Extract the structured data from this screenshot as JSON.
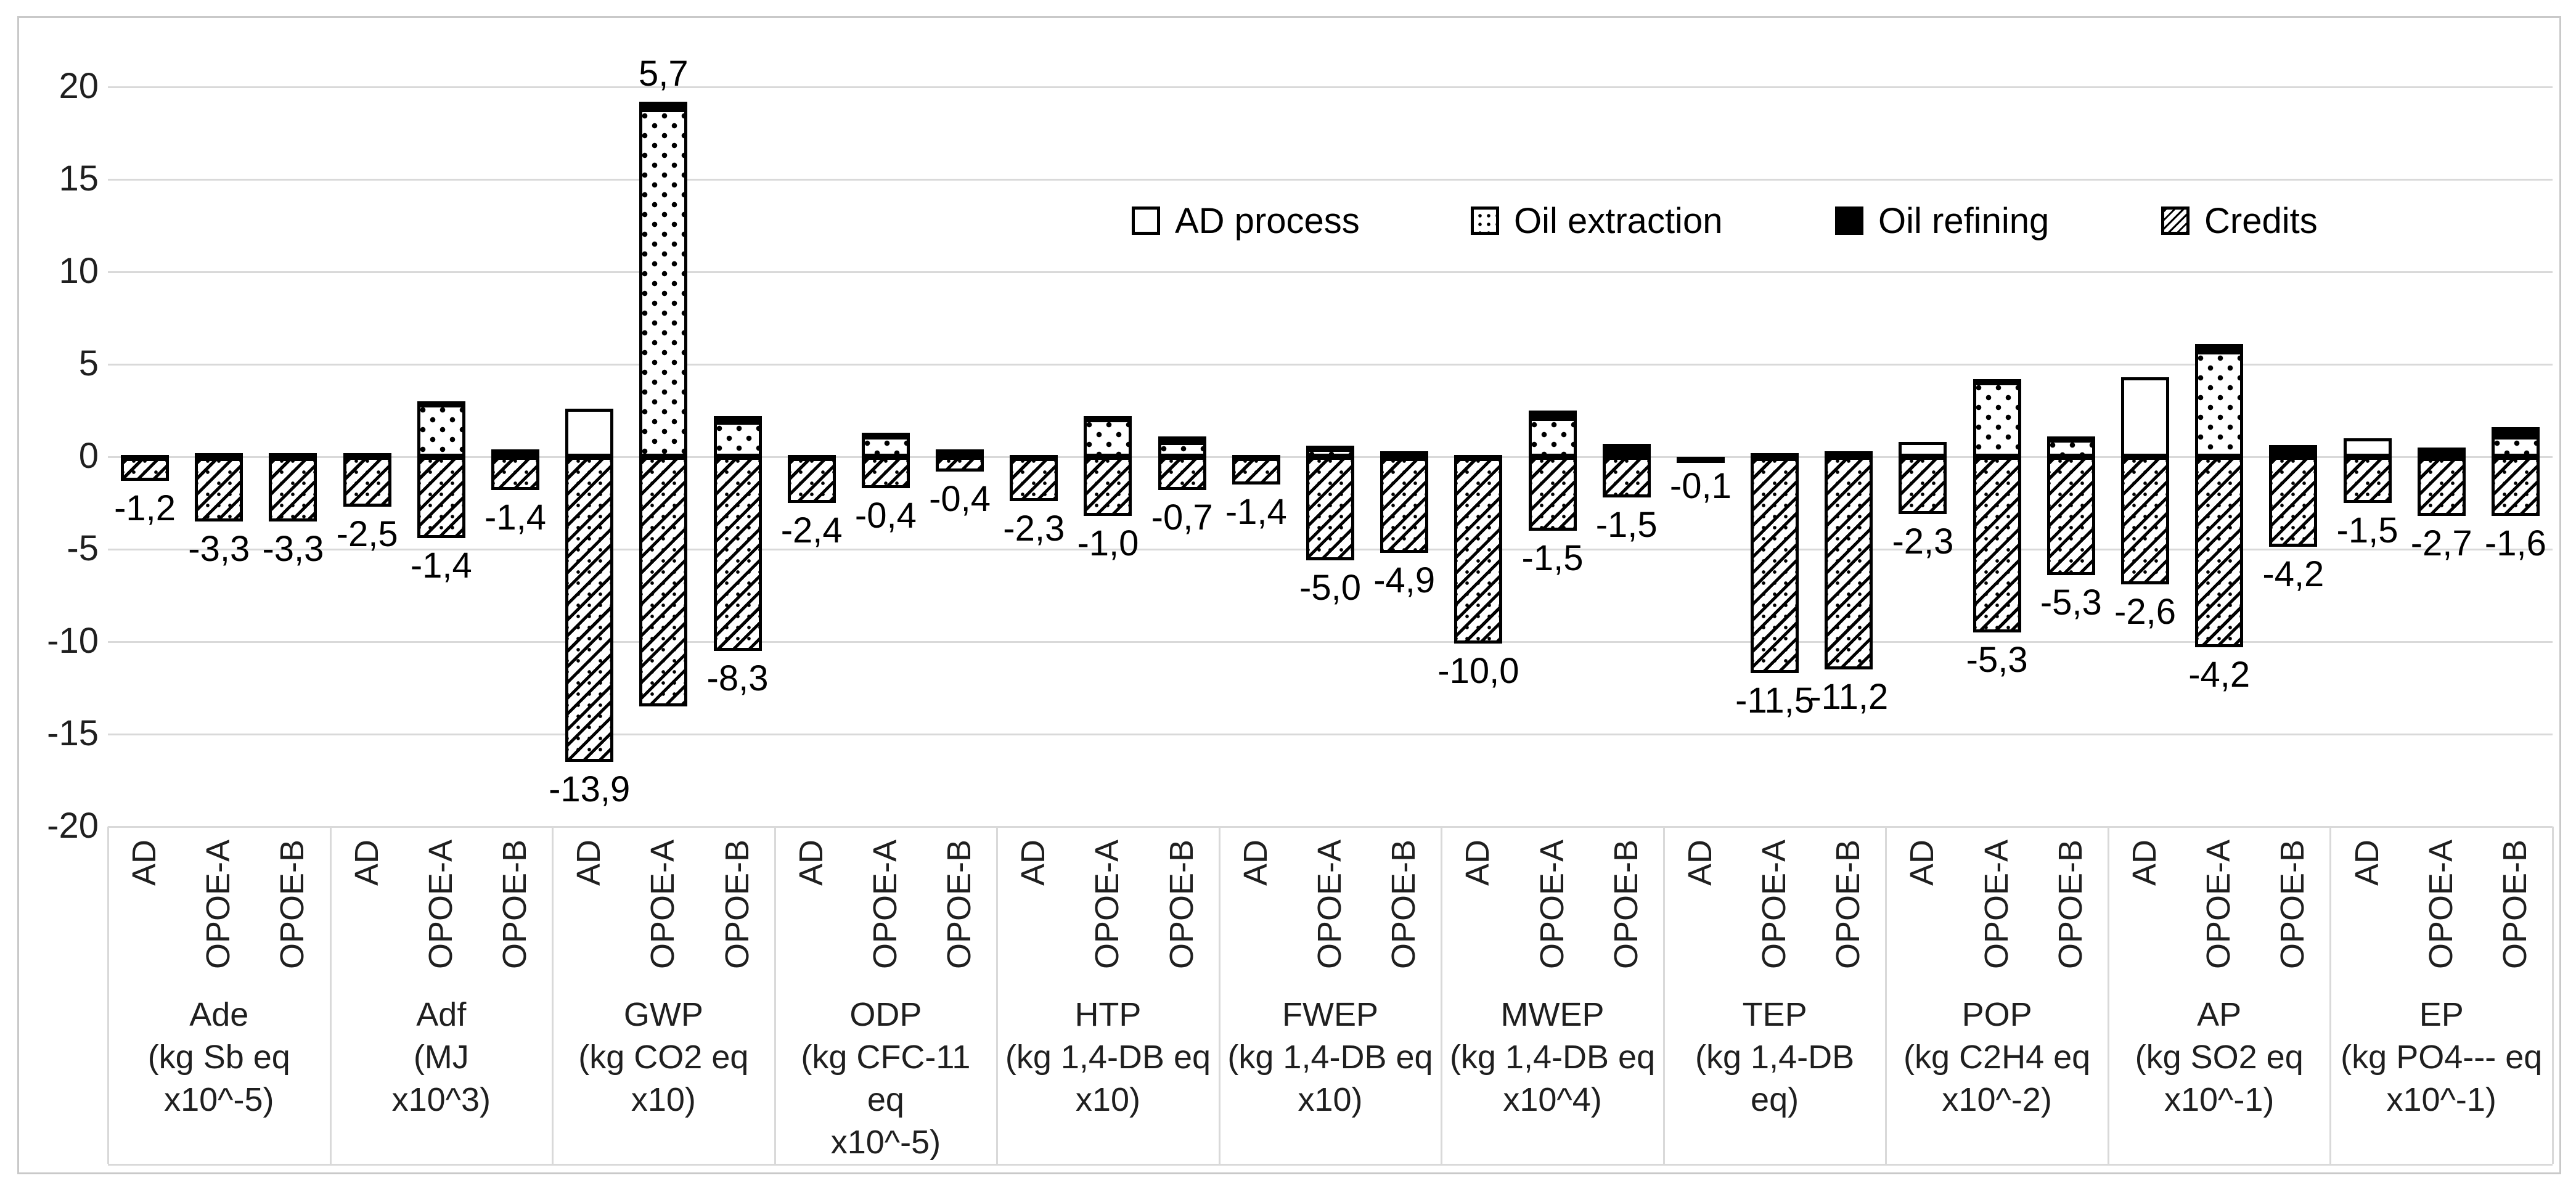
{
  "chart_data": {
    "type": "bar",
    "variant": "stacked-with-negative-credits",
    "title": "",
    "xlabel": "",
    "ylabel": "",
    "ylim": [
      -20,
      20
    ],
    "yticks": [
      20,
      15,
      10,
      5,
      0,
      -5,
      -10,
      -15,
      -20
    ],
    "grid": true,
    "legend_position": "top-center",
    "decimal_separator": ",",
    "legend": [
      {
        "id": "ad_process",
        "label": "AD process",
        "pattern": "white",
        "swatch_class": "sw-white"
      },
      {
        "id": "oil_extraction",
        "label": "Oil extraction",
        "pattern": "dots",
        "swatch_class": "sw-dots"
      },
      {
        "id": "oil_refining",
        "label": "Oil refining",
        "pattern": "black",
        "swatch_class": "sw-black"
      },
      {
        "id": "credits",
        "label": "Credits",
        "pattern": "diagonal-hatch",
        "swatch_class": "sw-hatch"
      }
    ],
    "scenarios": [
      "AD",
      "OPOE-A",
      "OPOE-B"
    ],
    "groups": [
      {
        "name": "Ade",
        "unit_lines": [
          "(kg Sb eq",
          "x10^-5)"
        ],
        "bars": [
          {
            "scenario": "AD",
            "segments": {
              "ad_process": 0.1,
              "oil_extraction": 0,
              "oil_refining": 0,
              "credits": -1.3
            },
            "total": -1.2,
            "total_label": "-1,2"
          },
          {
            "scenario": "OPOE-A",
            "segments": {
              "ad_process": 0,
              "oil_extraction": 0.1,
              "oil_refining": 0.1,
              "credits": -3.5
            },
            "total": -3.3,
            "total_label": "-3,3"
          },
          {
            "scenario": "OPOE-B",
            "segments": {
              "ad_process": 0,
              "oil_extraction": 0.1,
              "oil_refining": 0.1,
              "credits": -3.5
            },
            "total": -3.3,
            "total_label": "-3,3"
          }
        ]
      },
      {
        "name": "Adf",
        "unit_lines": [
          "(MJ",
          "x10^3)"
        ],
        "bars": [
          {
            "scenario": "AD",
            "segments": {
              "ad_process": 0.2,
              "oil_extraction": 0,
              "oil_refining": 0,
              "credits": -2.7
            },
            "total": -2.5,
            "total_label": "-2,5"
          },
          {
            "scenario": "OPOE-A",
            "segments": {
              "ad_process": 0,
              "oil_extraction": 2.9,
              "oil_refining": 0.1,
              "credits": -4.4
            },
            "total": -1.4,
            "total_label": "-1,4"
          },
          {
            "scenario": "OPOE-B",
            "segments": {
              "ad_process": 0,
              "oil_extraction": 0.3,
              "oil_refining": 0.1,
              "credits": -1.8
            },
            "total": -1.4,
            "total_label": "-1,4"
          }
        ]
      },
      {
        "name": "GWP",
        "unit_lines": [
          "(kg CO2 eq",
          "x10)"
        ],
        "bars": [
          {
            "scenario": "AD",
            "segments": {
              "ad_process": 2.6,
              "oil_extraction": 0,
              "oil_refining": 0,
              "credits": -16.5
            },
            "total": -13.9,
            "total_label": "-13,9"
          },
          {
            "scenario": "OPOE-A",
            "segments": {
              "ad_process": 0,
              "oil_extraction": 18.8,
              "oil_refining": 0.4,
              "credits": -13.5
            },
            "total": 5.7,
            "total_label": "5,7"
          },
          {
            "scenario": "OPOE-B",
            "segments": {
              "ad_process": 0,
              "oil_extraction": 1.9,
              "oil_refining": 0.3,
              "credits": -10.5
            },
            "total": -8.3,
            "total_label": "-8,3"
          }
        ]
      },
      {
        "name": "ODP",
        "unit_lines": [
          "(kg CFC-11 eq",
          "x10^-5)"
        ],
        "bars": [
          {
            "scenario": "AD",
            "segments": {
              "ad_process": 0.1,
              "oil_extraction": 0,
              "oil_refining": 0,
              "credits": -2.5
            },
            "total": -2.4,
            "total_label": "-2,4"
          },
          {
            "scenario": "OPOE-A",
            "segments": {
              "ad_process": 0,
              "oil_extraction": 1.1,
              "oil_refining": 0.2,
              "credits": -1.7
            },
            "total": -0.4,
            "total_label": "-0,4"
          },
          {
            "scenario": "OPOE-B",
            "segments": {
              "ad_process": 0,
              "oil_extraction": 0.3,
              "oil_refining": 0.1,
              "credits": -0.8
            },
            "total": -0.4,
            "total_label": "-0,4"
          }
        ]
      },
      {
        "name": "HTP",
        "unit_lines": [
          "(kg 1,4-DB eq",
          "x10)"
        ],
        "bars": [
          {
            "scenario": "AD",
            "segments": {
              "ad_process": 0.1,
              "oil_extraction": 0,
              "oil_refining": 0,
              "credits": -2.4
            },
            "total": -2.3,
            "total_label": "-2,3"
          },
          {
            "scenario": "OPOE-A",
            "segments": {
              "ad_process": 0,
              "oil_extraction": 2.1,
              "oil_refining": 0.1,
              "credits": -3.2
            },
            "total": -1.0,
            "total_label": "-1,0"
          },
          {
            "scenario": "OPOE-B",
            "segments": {
              "ad_process": 0,
              "oil_extraction": 0.8,
              "oil_refining": 0.3,
              "credits": -1.8
            },
            "total": -0.7,
            "total_label": "-0,7"
          }
        ]
      },
      {
        "name": "FWEP",
        "unit_lines": [
          "(kg 1,4-DB eq",
          "x10)"
        ],
        "bars": [
          {
            "scenario": "AD",
            "segments": {
              "ad_process": 0.1,
              "oil_extraction": 0,
              "oil_refining": 0,
              "credits": -1.5
            },
            "total": -1.4,
            "total_label": "-1,4"
          },
          {
            "scenario": "OPOE-A",
            "segments": {
              "ad_process": 0,
              "oil_extraction": 0.5,
              "oil_refining": 0.1,
              "credits": -5.6
            },
            "total": -5.0,
            "total_label": "-5,0"
          },
          {
            "scenario": "OPOE-B",
            "segments": {
              "ad_process": 0,
              "oil_extraction": 0.1,
              "oil_refining": 0.2,
              "credits": -5.2
            },
            "total": -4.9,
            "total_label": "-4,9"
          }
        ]
      },
      {
        "name": "MWEP",
        "unit_lines": [
          "(kg 1,4-DB eq",
          "x10^4)"
        ],
        "bars": [
          {
            "scenario": "AD",
            "segments": {
              "ad_process": 0.1,
              "oil_extraction": 0,
              "oil_refining": 0,
              "credits": -10.1
            },
            "total": -10.0,
            "total_label": "-10,0"
          },
          {
            "scenario": "OPOE-A",
            "segments": {
              "ad_process": 0,
              "oil_extraction": 2.1,
              "oil_refining": 0.4,
              "credits": -4.0
            },
            "total": -1.5,
            "total_label": "-1,5"
          },
          {
            "scenario": "OPOE-B",
            "segments": {
              "ad_process": 0,
              "oil_extraction": 0.3,
              "oil_refining": 0.4,
              "credits": -2.2
            },
            "total": -1.5,
            "total_label": "-1,5"
          }
        ]
      },
      {
        "name": "TEP",
        "unit_lines": [
          "(kg 1,4-DB eq)"
        ],
        "bars": [
          {
            "scenario": "AD",
            "segments": {
              "ad_process": 0,
              "oil_extraction": 0,
              "oil_refining": 0,
              "credits": -0.1
            },
            "total": -0.1,
            "total_label": "-0,1"
          },
          {
            "scenario": "OPOE-A",
            "segments": {
              "ad_process": 0,
              "oil_extraction": 0.1,
              "oil_refining": 0.1,
              "credits": -11.7
            },
            "total": -11.5,
            "total_label": "-11,5"
          },
          {
            "scenario": "OPOE-B",
            "segments": {
              "ad_process": 0,
              "oil_extraction": 0.2,
              "oil_refining": 0.1,
              "credits": -11.5
            },
            "total": -11.2,
            "total_label": "-11,2"
          }
        ]
      },
      {
        "name": "POP",
        "unit_lines": [
          "(kg C2H4 eq",
          "x10^-2)"
        ],
        "bars": [
          {
            "scenario": "AD",
            "segments": {
              "ad_process": 0.8,
              "oil_extraction": 0,
              "oil_refining": 0,
              "credits": -3.1
            },
            "total": -2.3,
            "total_label": "-2,3"
          },
          {
            "scenario": "OPOE-A",
            "segments": {
              "ad_process": 0,
              "oil_extraction": 4.1,
              "oil_refining": 0.1,
              "credits": -9.5
            },
            "total": -5.3,
            "total_label": "-5,3"
          },
          {
            "scenario": "OPOE-B",
            "segments": {
              "ad_process": 0,
              "oil_extraction": 1.0,
              "oil_refining": 0.1,
              "credits": -6.4
            },
            "total": -5.3,
            "total_label": "-5,3"
          }
        ]
      },
      {
        "name": "AP",
        "unit_lines": [
          "(kg SO2 eq",
          "x10^-1)"
        ],
        "bars": [
          {
            "scenario": "AD",
            "segments": {
              "ad_process": 4.3,
              "oil_extraction": 0,
              "oil_refining": 0,
              "credits": -6.9
            },
            "total": -2.6,
            "total_label": "-2,6"
          },
          {
            "scenario": "OPOE-A",
            "segments": {
              "ad_process": 0,
              "oil_extraction": 5.7,
              "oil_refining": 0.4,
              "credits": -10.3
            },
            "total": -4.2,
            "total_label": "-4,2"
          },
          {
            "scenario": "OPOE-B",
            "segments": {
              "ad_process": 0,
              "oil_extraction": 0.2,
              "oil_refining": 0.45,
              "credits": -4.85
            },
            "total": -4.2,
            "total_label": "-4,2"
          }
        ]
      },
      {
        "name": "EP",
        "unit_lines": [
          "(kg PO4--- eq",
          "x10^-1)"
        ],
        "bars": [
          {
            "scenario": "AD",
            "segments": {
              "ad_process": 1.0,
              "oil_extraction": 0,
              "oil_refining": 0,
              "credits": -2.5
            },
            "total": -1.5,
            "total_label": "-1,5"
          },
          {
            "scenario": "OPOE-A",
            "segments": {
              "ad_process": 0,
              "oil_extraction": 0.1,
              "oil_refining": 0.4,
              "credits": -3.2
            },
            "total": -2.7,
            "total_label": "-2,7"
          },
          {
            "scenario": "OPOE-B",
            "segments": {
              "ad_process": 0,
              "oil_extraction": 1.1,
              "oil_refining": 0.5,
              "credits": -3.2
            },
            "total": -1.6,
            "total_label": "-1,6"
          }
        ]
      }
    ]
  }
}
